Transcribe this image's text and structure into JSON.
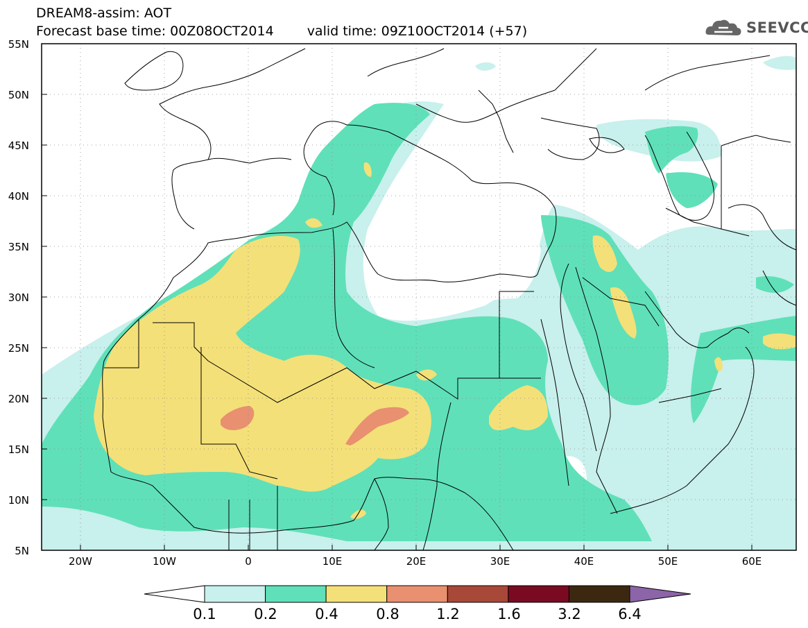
{
  "header": {
    "line1": "DREAM8-assim: AOT",
    "base_time": "Forecast base time: 00Z08OCT2014",
    "valid_time": "valid time: 09Z10OCT2014 (+57)"
  },
  "logo": {
    "text": "SEEVCCC",
    "icon": "cloud-icon"
  },
  "axes": {
    "lat_labels": [
      "55N",
      "50N",
      "45N",
      "40N",
      "35N",
      "30N",
      "25N",
      "20N",
      "15N",
      "10N",
      "5N"
    ],
    "lon_labels": [
      "20W",
      "10W",
      "0",
      "10E",
      "20E",
      "30E",
      "40E",
      "50E",
      "60E"
    ],
    "lon_range": [
      -25,
      65
    ],
    "lat_range": [
      5,
      55
    ]
  },
  "colorbar": {
    "labels": [
      "0.1",
      "0.2",
      "0.4",
      "0.8",
      "1.2",
      "1.6",
      "3.2",
      "6.4"
    ],
    "colors": [
      "#c8f0ec",
      "#5fe0b9",
      "#f4e078",
      "#e89070",
      "#a84838",
      "#7a0a22",
      "#3c2810",
      "#8c64a8"
    ],
    "under_color": "#ffffff",
    "over_color": "#8c64a8"
  }
}
